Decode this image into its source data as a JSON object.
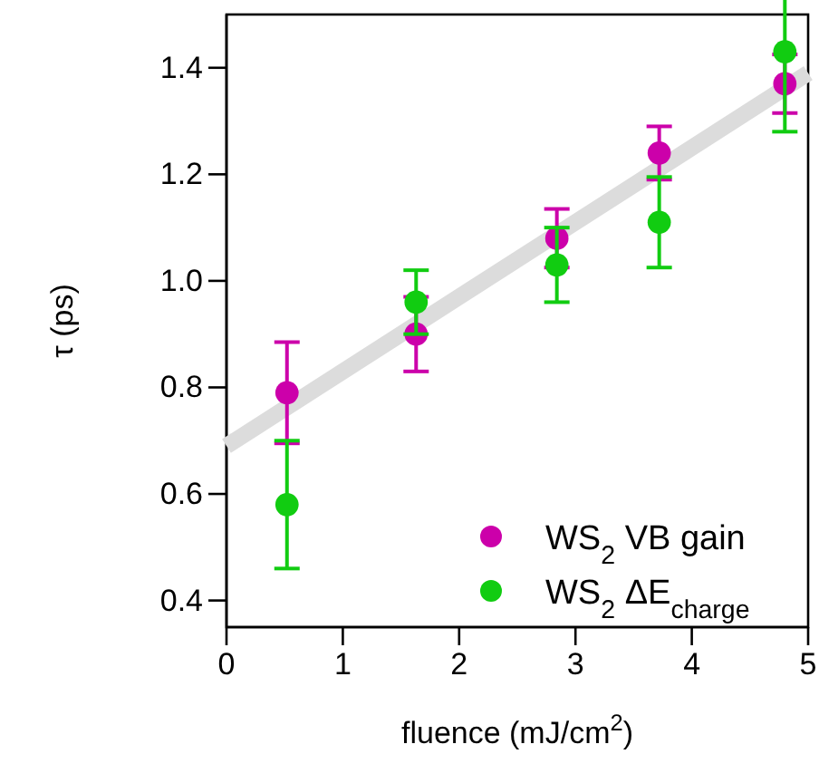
{
  "chart_data": {
    "type": "scatter",
    "xlabel": "fluence (mJ/cm$^{2}$)",
    "ylabel": "τ (ps)",
    "xlim": [
      0,
      5
    ],
    "ylim": [
      0.35,
      1.5
    ],
    "xticks": [
      0,
      1,
      2,
      3,
      4,
      5
    ],
    "yticks": [
      0.4,
      0.6,
      0.8,
      {
        "value": 1,
        "label": "1.0"
      },
      1.2,
      1.4
    ],
    "x": [
      0.52,
      1.63,
      2.84,
      3.72,
      4.8
    ],
    "series": [
      {
        "type": "line",
        "color": "#dcdcdc",
        "x": [
          0,
          5
        ],
        "values": [
          0.69,
          1.39
        ],
        "marker": "none"
      },
      {
        "name": "WS$_{2}$ VB gain",
        "color": "#cc00aa",
        "values": [
          0.79,
          0.9,
          1.08,
          1.24,
          1.37
        ],
        "errors": [
          0.095,
          0.07,
          0.055,
          0.05,
          0.055
        ]
      },
      {
        "name": "WS$_{2}$ ΔE$_{charge}$",
        "color": "#11cc11",
        "values": [
          0.58,
          0.96,
          1.03,
          1.11,
          1.43
        ],
        "errors": [
          0.12,
          0.06,
          0.07,
          0.085,
          0.15
        ]
      }
    ],
    "marker": "circle",
    "legend": "bottom right",
    "grid": false
  }
}
